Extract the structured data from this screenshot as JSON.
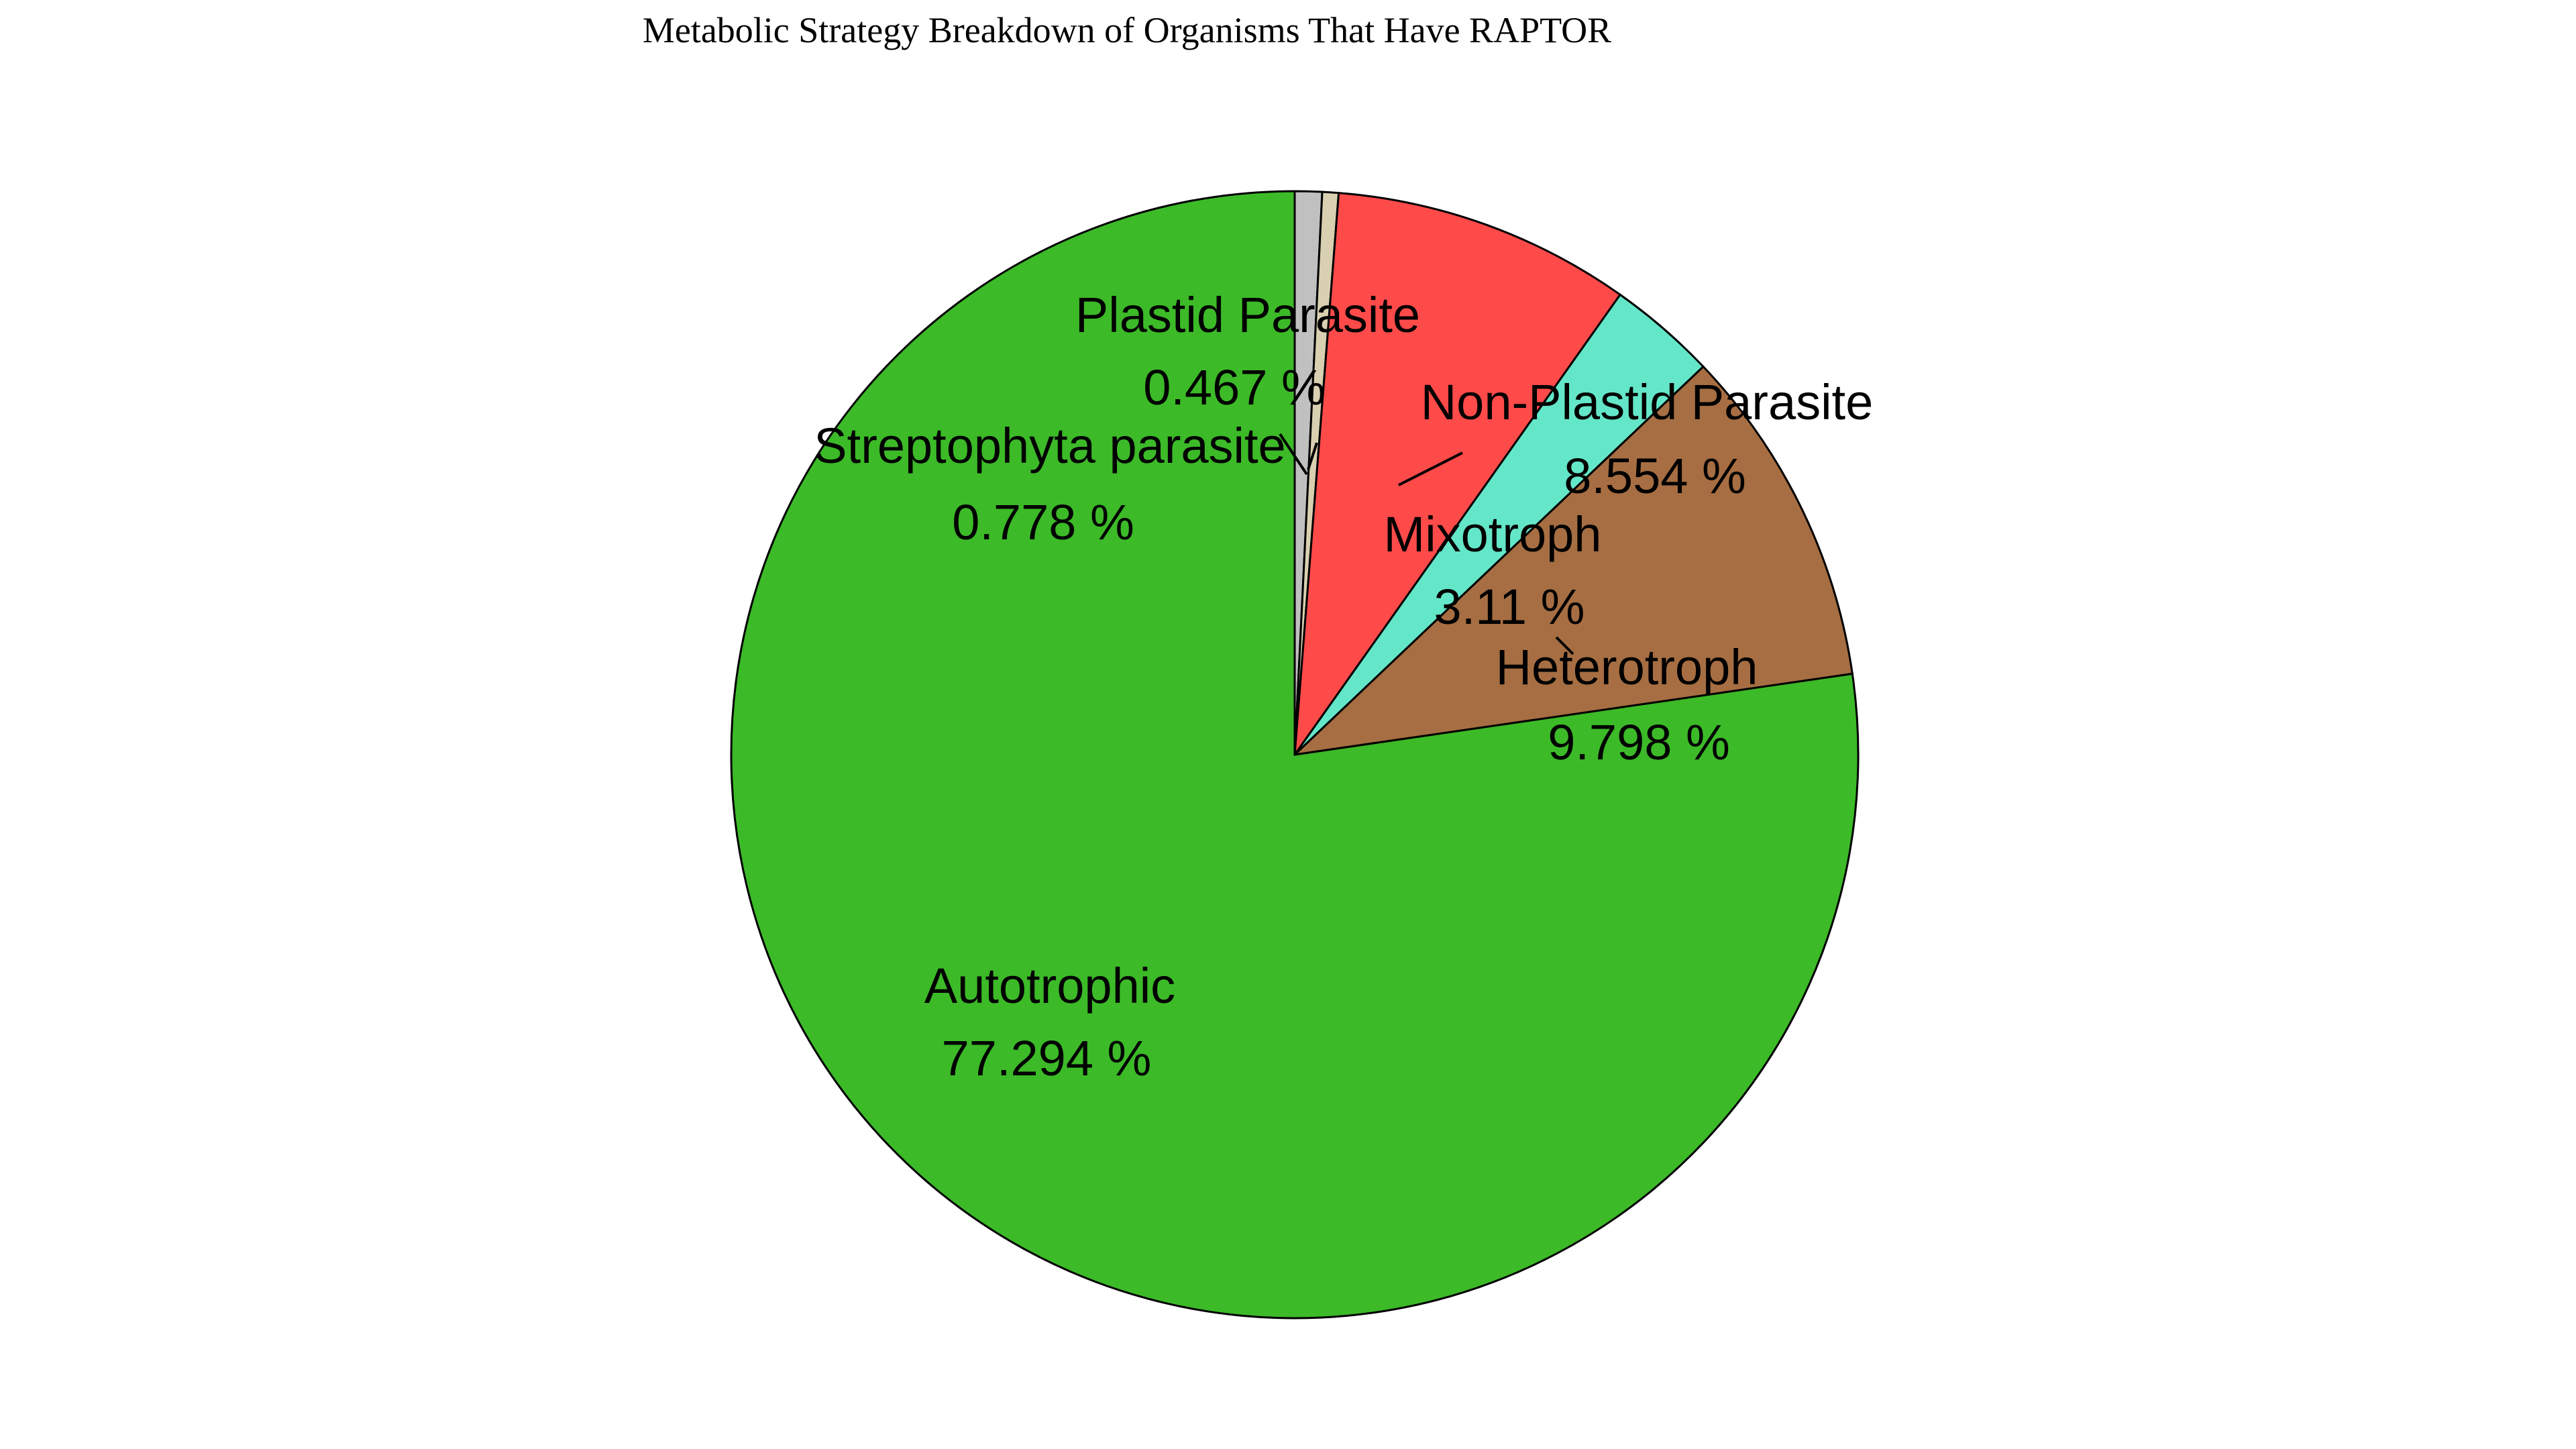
{
  "chart_data": {
    "type": "pie",
    "title": "Metabolic Strategy Breakdown of Organisms That Have RAPTOR",
    "slices": [
      {
        "label": "Streptophyta parasite",
        "value": 0.778,
        "display": "0.778 %",
        "color": "#c0c0c0"
      },
      {
        "label": "Plastid Parasite",
        "value": 0.467,
        "display": "0.467 %",
        "color": "#d8d0b0"
      },
      {
        "label": "Non-Plastid Parasite",
        "value": 8.554,
        "display": "8.554 %",
        "color": "#ff4a4a"
      },
      {
        "label": "Mixotroph",
        "value": 3.11,
        "display": "3.11 %",
        "color": "#64e6c8"
      },
      {
        "label": "Heterotroph",
        "value": 9.798,
        "display": "9.798 %",
        "color": "#a66e42"
      },
      {
        "label": "Autotrophic",
        "value": 77.294,
        "display": "77.294 %",
        "color": "#3cba28"
      }
    ],
    "start_angle_deg": 90,
    "direction": "clockwise",
    "edge_color": "#000000",
    "grid": false,
    "legend": "none"
  }
}
